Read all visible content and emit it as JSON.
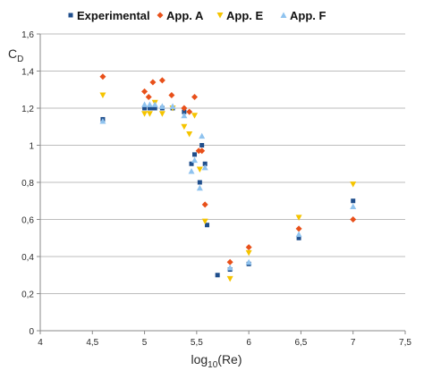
{
  "chart_data": {
    "type": "scatter",
    "title": "",
    "ylabel": "C",
    "ylabel_sub": "D",
    "xlabel": "log",
    "xlabel_sub": "10",
    "xlabel_suffix": "(Re)",
    "xlim": [
      4,
      7.5
    ],
    "ylim": [
      0,
      1.6
    ],
    "x_ticks": [
      4,
      4.5,
      5,
      5.5,
      6,
      6.5,
      7,
      7.5
    ],
    "x_tick_labels": [
      "4",
      "4,5",
      "5",
      "5,5",
      "6",
      "6,5",
      "7",
      "7,5"
    ],
    "y_ticks": [
      0,
      0.2,
      0.4,
      0.6,
      0.8,
      1.0,
      1.2,
      1.4,
      1.6
    ],
    "y_tick_labels": [
      "0",
      "0,2",
      "0,4",
      "0,6",
      "0,8",
      "1",
      "1,2",
      "1,4",
      "1,6"
    ],
    "grid": "horizontal",
    "legend_position": "top",
    "series": [
      {
        "name": "Experimental",
        "marker": "square",
        "color": "#1f4e8c",
        "points": [
          [
            4.6,
            1.14
          ],
          [
            5.0,
            1.2
          ],
          [
            5.05,
            1.2
          ],
          [
            5.08,
            1.2
          ],
          [
            5.1,
            1.2
          ],
          [
            5.17,
            1.2
          ],
          [
            5.27,
            1.2
          ],
          [
            5.38,
            1.18
          ],
          [
            5.45,
            0.9
          ],
          [
            5.48,
            0.95
          ],
          [
            5.53,
            0.8
          ],
          [
            5.55,
            1.0
          ],
          [
            5.58,
            0.9
          ],
          [
            5.6,
            0.57
          ],
          [
            5.7,
            0.3
          ],
          [
            5.82,
            0.33
          ],
          [
            6.0,
            0.36
          ],
          [
            6.48,
            0.5
          ],
          [
            7.0,
            0.7
          ]
        ]
      },
      {
        "name": "App. A",
        "marker": "diamond",
        "color": "#e8501a",
        "points": [
          [
            4.6,
            1.37
          ],
          [
            5.0,
            1.29
          ],
          [
            5.04,
            1.26
          ],
          [
            5.08,
            1.34
          ],
          [
            5.17,
            1.35
          ],
          [
            5.26,
            1.27
          ],
          [
            5.38,
            1.2
          ],
          [
            5.43,
            1.18
          ],
          [
            5.48,
            1.26
          ],
          [
            5.52,
            0.97
          ],
          [
            5.55,
            0.97
          ],
          [
            5.58,
            0.68
          ],
          [
            5.82,
            0.37
          ],
          [
            6.0,
            0.45
          ],
          [
            6.48,
            0.55
          ],
          [
            7.0,
            0.6
          ]
        ]
      },
      {
        "name": "App. E",
        "marker": "triangle-down",
        "color": "#f5c400",
        "points": [
          [
            4.6,
            1.27
          ],
          [
            5.0,
            1.17
          ],
          [
            5.05,
            1.17
          ],
          [
            5.1,
            1.23
          ],
          [
            5.17,
            1.17
          ],
          [
            5.27,
            1.2
          ],
          [
            5.38,
            1.1
          ],
          [
            5.43,
            1.06
          ],
          [
            5.48,
            1.16
          ],
          [
            5.53,
            0.87
          ],
          [
            5.58,
            0.59
          ],
          [
            5.82,
            0.28
          ],
          [
            6.0,
            0.42
          ],
          [
            6.48,
            0.61
          ],
          [
            7.0,
            0.79
          ]
        ]
      },
      {
        "name": "App. F",
        "marker": "triangle-up",
        "color": "#8fc3ef",
        "points": [
          [
            4.6,
            1.13
          ],
          [
            5.0,
            1.22
          ],
          [
            5.05,
            1.22
          ],
          [
            5.1,
            1.22
          ],
          [
            5.17,
            1.21
          ],
          [
            5.27,
            1.21
          ],
          [
            5.38,
            1.16
          ],
          [
            5.45,
            0.86
          ],
          [
            5.48,
            0.92
          ],
          [
            5.53,
            0.77
          ],
          [
            5.55,
            1.05
          ],
          [
            5.58,
            0.88
          ],
          [
            5.82,
            0.34
          ],
          [
            6.0,
            0.37
          ],
          [
            6.48,
            0.52
          ],
          [
            7.0,
            0.67
          ]
        ]
      }
    ]
  }
}
